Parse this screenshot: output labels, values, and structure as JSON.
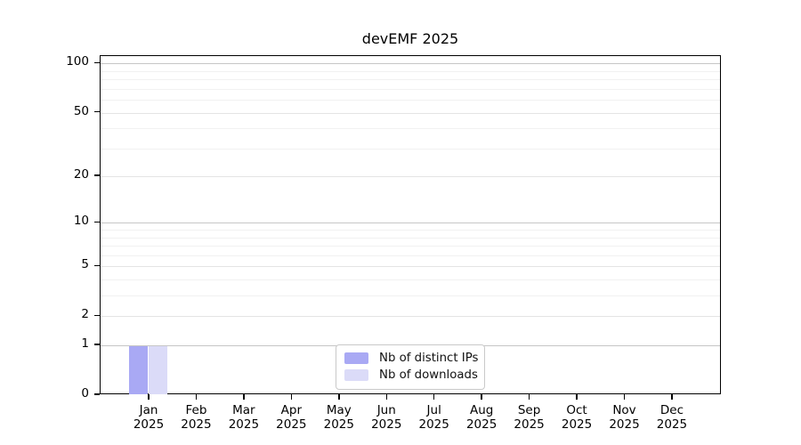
{
  "figure": {
    "background_color": "#ffffff",
    "axis_color": "#000000"
  },
  "chart_data": {
    "type": "bar",
    "title": "devEMF 2025",
    "xlabel": "",
    "ylabel": "",
    "categories": [
      "Jan",
      "Feb",
      "Mar",
      "Apr",
      "May",
      "Jun",
      "Jul",
      "Aug",
      "Sep",
      "Oct",
      "Nov",
      "Dec"
    ],
    "category_year": "2025",
    "series": [
      {
        "name": "Nb of distinct IPs",
        "color": "#a9a9f4",
        "values": [
          1,
          0,
          0,
          0,
          0,
          0,
          0,
          0,
          0,
          0,
          0,
          0
        ]
      },
      {
        "name": "Nb of downloads",
        "color": "#dbdbf8",
        "values": [
          1,
          0,
          0,
          0,
          0,
          0,
          0,
          0,
          0,
          0,
          0,
          0
        ]
      }
    ],
    "y_scale": "log1p",
    "ylim": [
      0,
      111
    ],
    "y_tick_labels": [
      "0",
      "1",
      "2",
      "5",
      "10",
      "20",
      "50",
      "100"
    ],
    "y_major_ticks": [
      0,
      1,
      2,
      5,
      10,
      20,
      50,
      100
    ],
    "gridlines": {
      "decade": [
        1,
        10,
        100
      ],
      "mid": [
        2,
        5,
        20,
        50
      ],
      "minor": [
        3,
        4,
        6,
        7,
        8,
        9,
        30,
        40,
        60,
        70,
        80,
        90
      ]
    },
    "grid": "horizontal",
    "legend": {
      "position": "inside-bottom-center",
      "entries": [
        "Nb of distinct IPs",
        "Nb of downloads"
      ]
    }
  }
}
